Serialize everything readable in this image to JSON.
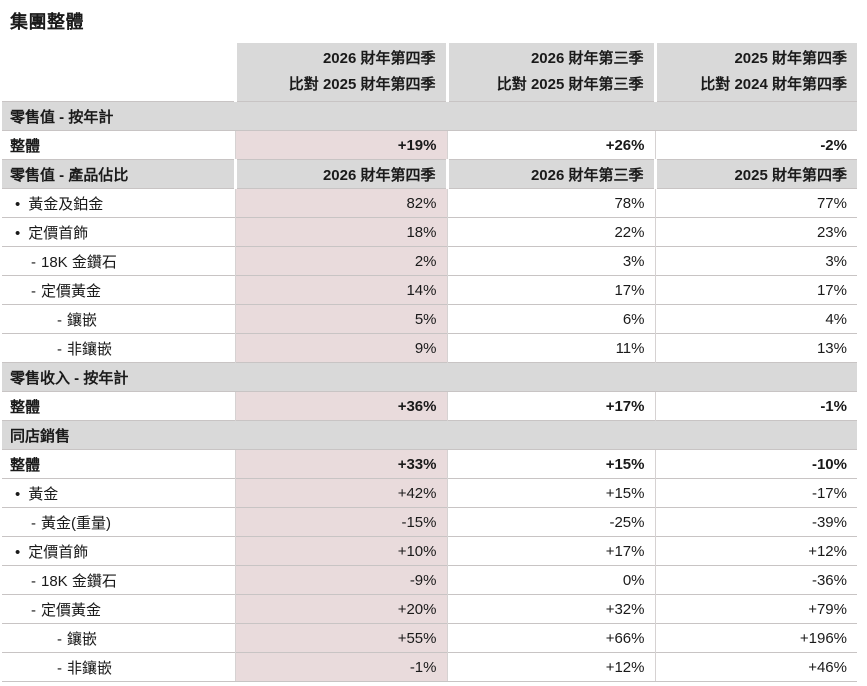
{
  "title": "集團整體",
  "colors": {
    "header_bg": "#d9d9d9",
    "section_bg": "#d9d9d9",
    "highlight_column_bg": "#e9dbdc",
    "grid_line": "#c8c4c4",
    "text": "#1a1a1a"
  },
  "table": {
    "header": [
      {
        "line1": "2026 財年第四季",
        "line2": "比對 2025 財年第四季"
      },
      {
        "line1": "2026 財年第三季",
        "line2": "比對 2025 財年第三季"
      },
      {
        "line1": "2025 財年第四季",
        "line2": "比對 2024 財年第四季"
      }
    ],
    "rows": [
      {
        "type": "section",
        "label": "零售值 - 按年計"
      },
      {
        "type": "total",
        "label": "整體",
        "values": [
          "+19%",
          "+26%",
          "-2%"
        ]
      },
      {
        "type": "subheader",
        "label": "零售值 - 產品佔比",
        "values": [
          "2026 財年第四季",
          "2026 財年第三季",
          "2025 財年第四季"
        ]
      },
      {
        "type": "bullet",
        "prefix": "•",
        "label": "黃金及鉑金",
        "values": [
          "82%",
          "78%",
          "77%"
        ]
      },
      {
        "type": "bullet",
        "prefix": "•",
        "label": "定價首飾",
        "values": [
          "18%",
          "22%",
          "23%"
        ]
      },
      {
        "type": "dash",
        "prefix": "-",
        "label": "18K 金鑽石",
        "values": [
          "2%",
          "3%",
          "3%"
        ]
      },
      {
        "type": "dash",
        "prefix": "-",
        "label": "定價黃金",
        "values": [
          "14%",
          "17%",
          "17%"
        ]
      },
      {
        "type": "dash-deep",
        "prefix": "-",
        "label": "鑲嵌",
        "values": [
          "5%",
          "6%",
          "4%"
        ]
      },
      {
        "type": "dash-deep",
        "prefix": "-",
        "label": "非鑲嵌",
        "values": [
          "9%",
          "11%",
          "13%"
        ]
      },
      {
        "type": "section",
        "label": "零售收入 - 按年計"
      },
      {
        "type": "total",
        "label": "整體",
        "values": [
          "+36%",
          "+17%",
          "-1%"
        ]
      },
      {
        "type": "section",
        "label": "同店銷售"
      },
      {
        "type": "total",
        "label": "整體",
        "values": [
          "+33%",
          "+15%",
          "-10%"
        ]
      },
      {
        "type": "bullet",
        "prefix": "•",
        "label": "黃金",
        "values": [
          "+42%",
          "+15%",
          "-17%"
        ]
      },
      {
        "type": "dash",
        "prefix": "-",
        "label": "黃金(重量)",
        "values": [
          "-15%",
          "-25%",
          "-39%"
        ]
      },
      {
        "type": "bullet",
        "prefix": "•",
        "label": "定價首飾",
        "values": [
          "+10%",
          "+17%",
          "+12%"
        ]
      },
      {
        "type": "dash",
        "prefix": "-",
        "label": "18K 金鑽石",
        "values": [
          "-9%",
          "0%",
          "-36%"
        ]
      },
      {
        "type": "dash",
        "prefix": "-",
        "label": "定價黃金",
        "values": [
          "+20%",
          "+32%",
          "+79%"
        ]
      },
      {
        "type": "dash-deep",
        "prefix": "-",
        "label": "鑲嵌",
        "values": [
          "+55%",
          "+66%",
          "+196%"
        ]
      },
      {
        "type": "dash-deep",
        "prefix": "-",
        "label": "非鑲嵌",
        "values": [
          "-1%",
          "+12%",
          "+46%"
        ]
      }
    ]
  }
}
